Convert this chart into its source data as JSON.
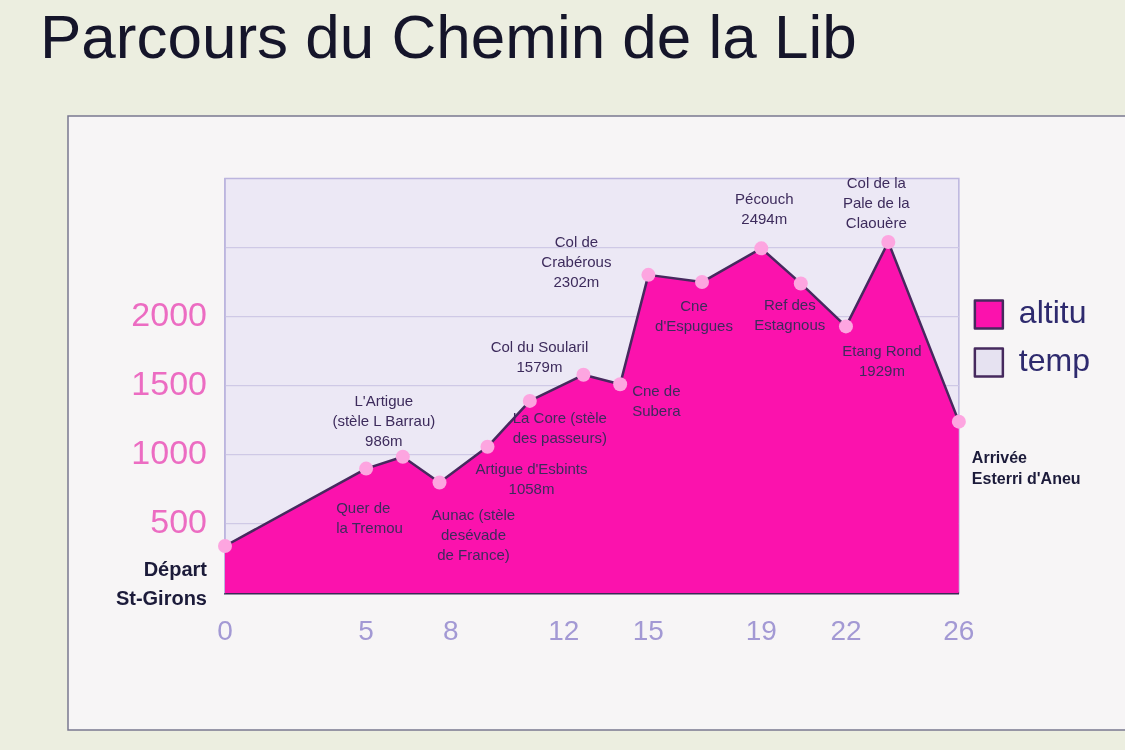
{
  "chart_data": {
    "type": "area",
    "title": "Parcours du Chemin de la Lib",
    "x": [
      0,
      5,
      6.3,
      7.6,
      9.3,
      10.8,
      12.7,
      14,
      15,
      16.9,
      19,
      20.4,
      22,
      23.5,
      26
    ],
    "series": [
      {
        "name": "altitu",
        "color": "#fb12ad",
        "values": [
          340,
          900,
          986,
          800,
          1058,
          1390,
          1579,
          1510,
          2302,
          2250,
          2494,
          2240,
          1929,
          2540,
          1240
        ]
      },
      {
        "name": "temp",
        "color": "#e6e2f1",
        "values": [
          null,
          null,
          null,
          null,
          null,
          null,
          null,
          null,
          null,
          null,
          null,
          null,
          null,
          null,
          null
        ]
      }
    ],
    "xlim": [
      0,
      26
    ],
    "xticks": [
      0,
      5,
      8,
      12,
      15,
      19,
      22,
      26
    ],
    "ylim": [
      0,
      3000
    ],
    "yticks": [
      500,
      1000,
      1500,
      2000,
      {
        "value": 2500,
        "label": null
      }
    ],
    "grid": "y",
    "legend": "right",
    "marker": "circle",
    "annotations": [
      {
        "text": "Départ\nSt-Girons",
        "x": 0,
        "y": 340
      },
      {
        "text": "Quer de\nla Tremou",
        "x": 5,
        "y": 900
      },
      {
        "text": "L'Artigue\n(stèle L Barrau)\n986m",
        "x": 6.3,
        "y": 986
      },
      {
        "text": "Aunac (stèle\ndesévade\nde France)",
        "x": 7.6,
        "y": 800
      },
      {
        "text": "Artigue d'Esbints\n1058m",
        "x": 9.3,
        "y": 1058
      },
      {
        "text": "La Core (stèle\ndes passeurs)",
        "x": 10.8,
        "y": 1390
      },
      {
        "text": "Col du Soularil\n1579m",
        "x": 12.7,
        "y": 1579
      },
      {
        "text": "Cne de\nSubera",
        "x": 14,
        "y": 1510
      },
      {
        "text": "Col de\nCrabérous\n2302m",
        "x": 15,
        "y": 2302
      },
      {
        "text": "Cne\nd'Espugues",
        "x": 16.9,
        "y": 2250
      },
      {
        "text": "Pécouch\n2494m",
        "x": 19,
        "y": 2494
      },
      {
        "text": "Ref des\nEstagnous",
        "x": 20.4,
        "y": 2240
      },
      {
        "text": "Etang Rond\n1929m",
        "x": 22,
        "y": 1929
      },
      {
        "text": "Col de la\nPale de la\nClaouère",
        "x": 23.5,
        "y": 2540
      },
      {
        "text": "Arrivée\nEsterri d'Aneu",
        "x": 26,
        "y": 1240
      }
    ]
  }
}
